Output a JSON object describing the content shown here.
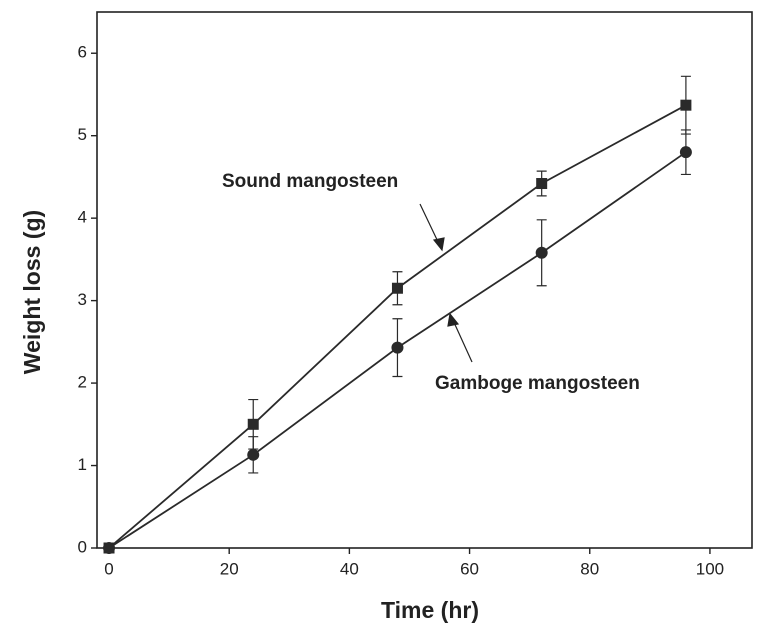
{
  "chart_data": {
    "type": "line",
    "x_label": "Time (hr)",
    "y_label": "Weight loss (g)",
    "x": [
      0,
      24,
      48,
      72,
      96
    ],
    "series": [
      {
        "name": "Sound mangosteen",
        "color": "#2a2a2a",
        "marker": "square",
        "values": [
          0,
          1.5,
          3.15,
          4.42,
          5.37
        ],
        "errors": [
          null,
          0.3,
          0.2,
          0.15,
          0.35
        ]
      },
      {
        "name": "Gamboge mangosteen",
        "color": "#2a2a2a",
        "marker": "circle",
        "values": [
          0,
          1.13,
          2.43,
          3.58,
          4.8
        ],
        "errors": [
          null,
          0.22,
          0.35,
          0.4,
          0.27
        ]
      }
    ],
    "xlim": [
      -2,
      107
    ],
    "xticks": [
      0,
      20,
      40,
      60,
      80,
      100
    ],
    "ylim": [
      0,
      6.5
    ],
    "yticks": [
      0,
      1,
      2,
      3,
      4,
      5,
      6
    ],
    "grid": false
  }
}
